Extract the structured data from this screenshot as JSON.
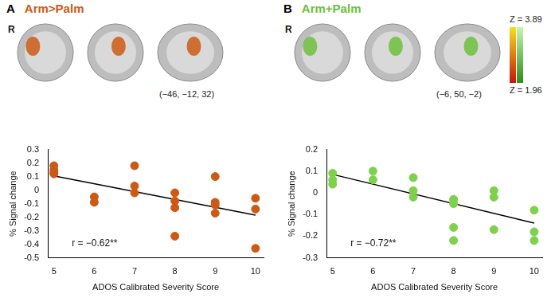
{
  "figure": {
    "panels": [
      {
        "letter": "A",
        "title": "Arm>Palm",
        "coordinates": "(−46, −12, 32)",
        "side_mark": "R",
        "color": "#cc5a14"
      },
      {
        "letter": "B",
        "title": "Arm+Palm",
        "coordinates": "(−6, 50, −2)",
        "side_mark": "R",
        "color": "#6cbf3c"
      }
    ],
    "colorbar": {
      "max_label": "Z = 3.89",
      "min_label": "Z = 1.96"
    }
  },
  "chart_data": [
    {
      "type": "scatter",
      "title": "Arm>Palm",
      "x_label": "ADOS Calibrated Severity Score",
      "y_label": "% Signal change",
      "annotation": "r = −0.62**",
      "color": "#cc5a14",
      "marker": "circle",
      "x": [
        5,
        5,
        5,
        5,
        6,
        6,
        7,
        7,
        7,
        8,
        8,
        8,
        8,
        9,
        9,
        9,
        9,
        10,
        10,
        10
      ],
      "values": [
        0.18,
        0.15,
        0.13,
        0.12,
        -0.05,
        -0.09,
        0.18,
        0.03,
        -0.02,
        -0.02,
        -0.08,
        -0.13,
        -0.34,
        0.1,
        -0.09,
        -0.11,
        -0.17,
        -0.06,
        -0.14,
        -0.43
      ],
      "fit_line": {
        "x": [
          5,
          10
        ],
        "y": [
          0.105,
          -0.185
        ]
      },
      "xlim": [
        4.85,
        10.2
      ],
      "xticks": [
        5,
        6,
        7,
        8,
        9,
        10
      ],
      "ylim": [
        -0.5,
        0.3
      ],
      "yticks": [
        -0.5,
        -0.4,
        -0.3,
        -0.2,
        -0.1,
        0,
        0.1,
        0.2,
        0.3
      ],
      "grid": false
    },
    {
      "type": "scatter",
      "title": "Arm+Palm",
      "x_label": "ADOS Calibrated Severity Score",
      "y_label": "% Signal change",
      "annotation": "r = −0.72**",
      "color": "#7dd14b",
      "marker": "circle",
      "x": [
        5,
        5,
        5,
        6,
        6,
        7,
        7,
        7,
        8,
        8,
        8,
        8,
        9,
        9,
        9,
        10,
        10,
        10
      ],
      "values": [
        0.09,
        0.06,
        0.04,
        0.1,
        0.06,
        0.07,
        0.01,
        -0.02,
        -0.03,
        -0.05,
        -0.16,
        -0.22,
        0.01,
        -0.02,
        -0.17,
        -0.08,
        -0.18,
        -0.22
      ],
      "fit_line": {
        "x": [
          5,
          10
        ],
        "y": [
          0.085,
          -0.14
        ]
      },
      "xlim": [
        4.85,
        10.2
      ],
      "xticks": [
        5,
        6,
        7,
        8,
        9,
        10
      ],
      "ylim": [
        -0.3,
        0.2
      ],
      "yticks": [
        -0.3,
        -0.2,
        -0.1,
        0,
        0.1,
        0.2
      ],
      "grid": false
    }
  ]
}
